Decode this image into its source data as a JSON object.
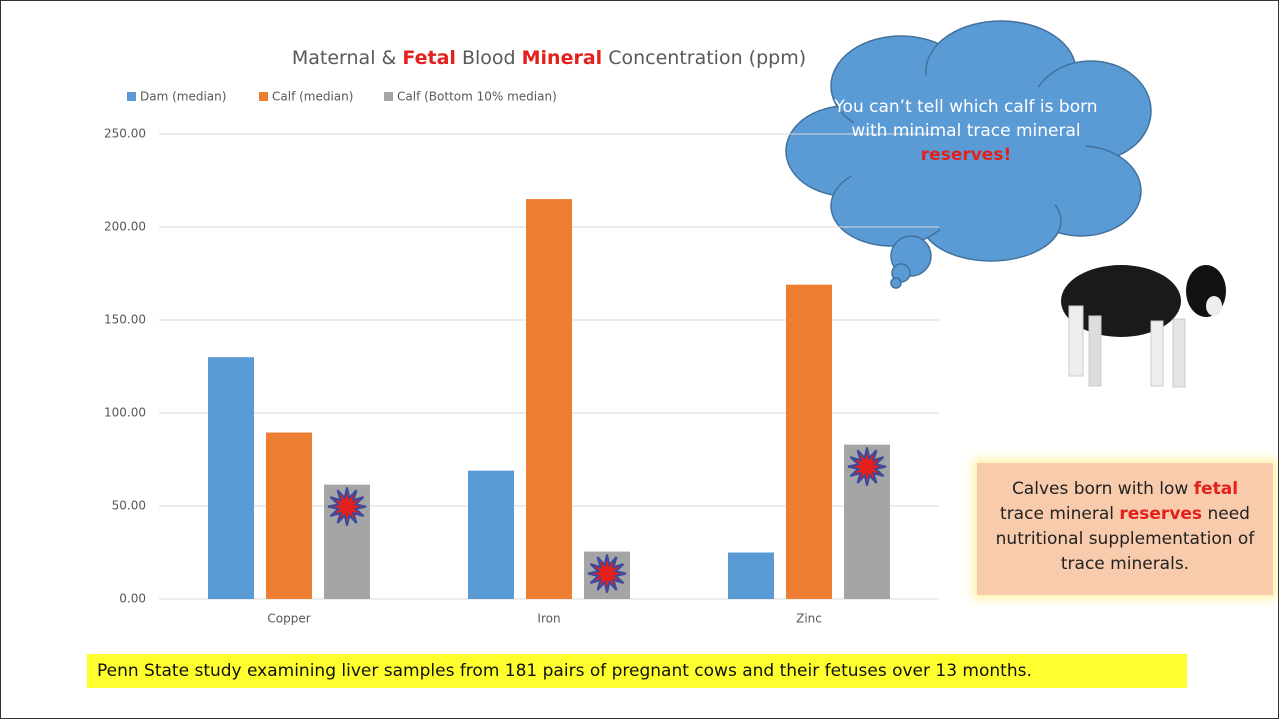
{
  "chart_data": {
    "type": "bar",
    "title_parts": [
      "Maternal &",
      "Fetal",
      "Blood",
      "Mineral",
      "Concentration (ppm)"
    ],
    "categories": [
      "Copper",
      "Iron",
      "Zinc"
    ],
    "series": [
      {
        "name": "Dam (median)",
        "color": "#5b9bd5",
        "values": [
          130,
          69,
          25
        ]
      },
      {
        "name": "Calf (median)",
        "color": "#ed7d31",
        "values": [
          89.5,
          215,
          169
        ]
      },
      {
        "name": "Calf (Bottom 10% median)",
        "color": "#a5a5a5",
        "values": [
          61.5,
          25.5,
          83
        ]
      }
    ],
    "ylim": [
      0,
      250
    ],
    "yticks": [
      {
        "value": 0,
        "label": "0.00"
      },
      {
        "value": 50,
        "label": "50.00"
      },
      {
        "value": 100,
        "label": "100.00"
      },
      {
        "value": 150,
        "label": "150.00"
      },
      {
        "value": 200,
        "label": "200.00"
      },
      {
        "value": 250,
        "label": "250.00"
      }
    ],
    "grid": true,
    "legend": "top-left"
  },
  "cloud": {
    "parts": [
      "You can’t tell which calf is born with minimal trace mineral",
      "reserves!"
    ]
  },
  "callout": {
    "parts": [
      "Calves born with low",
      "fetal",
      "trace mineral",
      "reserves",
      "need nutritional supplementation of trace minerals."
    ]
  },
  "footer": "Penn State study examining liver samples from 181 pairs of pregnant cows and their fetuses over 13 months."
}
